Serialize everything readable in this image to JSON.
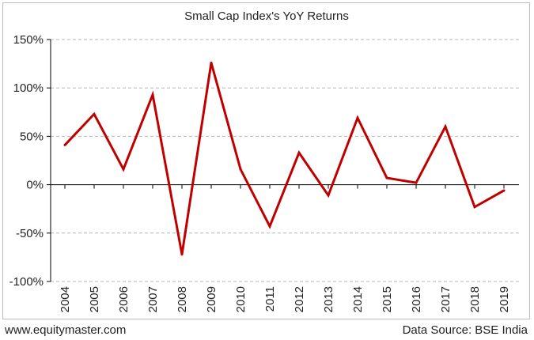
{
  "chart_data": {
    "type": "line",
    "title": "Small Cap Index's YoY Returns",
    "xlabel": "",
    "ylabel": "",
    "categories": [
      "2004",
      "2005",
      "2006",
      "2007",
      "2008",
      "2009",
      "2010",
      "2011",
      "2012",
      "2013",
      "2014",
      "2015",
      "2016",
      "2017",
      "2018",
      "2019"
    ],
    "series": [
      {
        "values": [
          41,
          73,
          16,
          93,
          -72,
          126,
          16,
          -43,
          33,
          -11,
          69,
          7,
          2,
          60,
          -23,
          -6
        ]
      }
    ],
    "ylim": [
      -100,
      150
    ],
    "yticks": [
      -100,
      -50,
      0,
      50,
      100,
      150
    ],
    "ytick_labels": [
      "-100%",
      "-50%",
      "0%",
      "50%",
      "100%",
      "150%"
    ],
    "grid": true,
    "line_color": "#c00000"
  },
  "footer": {
    "website": "www.equitymaster.com",
    "source": "Data Source: BSE India"
  }
}
